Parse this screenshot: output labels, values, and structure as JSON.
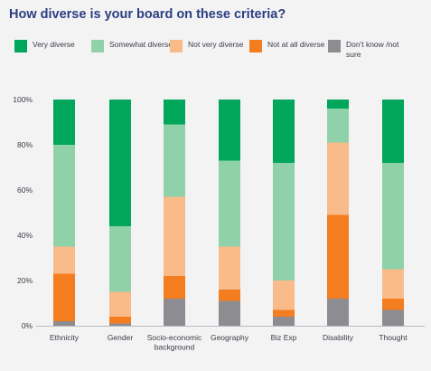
{
  "title": "How diverse is your board on these criteria?",
  "legend": [
    {
      "label": "Very diverse",
      "color": "#00a65a"
    },
    {
      "label": "Somewhat diverse",
      "color": "#8fd1a9"
    },
    {
      "label": "Not very diverse",
      "color": "#f9bb89"
    },
    {
      "label": "Not at all diverse",
      "color": "#f47d20"
    },
    {
      "label": "Don't know /not sure",
      "color": "#8d8d91"
    }
  ],
  "chart_data": {
    "type": "bar",
    "stacked": true,
    "categories": [
      "Ethnicity",
      "Gender",
      "Socio-economic background",
      "Geography",
      "Biz Exp",
      "Disability",
      "Thought"
    ],
    "series": [
      {
        "name": "Don't know /not sure",
        "color": "#8d8d91",
        "values": [
          2,
          1,
          12,
          11,
          4,
          12,
          7
        ]
      },
      {
        "name": "Not at all diverse",
        "color": "#f47d20",
        "values": [
          21,
          3,
          10,
          5,
          3,
          37,
          5
        ]
      },
      {
        "name": "Not very diverse",
        "color": "#f9bb89",
        "values": [
          12,
          11,
          35,
          19,
          13,
          32,
          13
        ]
      },
      {
        "name": "Somewhat diverse",
        "color": "#8fd1a9",
        "values": [
          45,
          29,
          32,
          38,
          52,
          15,
          47
        ]
      },
      {
        "name": "Very diverse",
        "color": "#00a65a",
        "values": [
          20,
          56,
          11,
          27,
          28,
          4,
          28
        ]
      }
    ],
    "yticks": [
      "0%",
      "20%",
      "40%",
      "60%",
      "80%",
      "100%"
    ],
    "ylim": [
      0,
      100
    ],
    "grid": false
  }
}
